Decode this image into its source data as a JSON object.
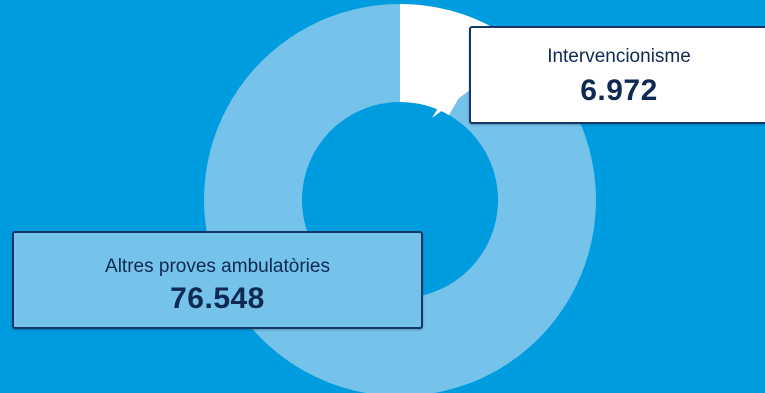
{
  "chart_data": {
    "type": "pie",
    "donut": true,
    "slices": [
      {
        "label": "Intervencionisme",
        "value": 6972,
        "display": "6.972",
        "color": "#ffffff"
      },
      {
        "label": "Altres proves ambulatòries",
        "value": 76548,
        "display": "76.548",
        "color": "#75c2ea"
      }
    ]
  },
  "colors": {
    "background": "#009ce0",
    "border": "#15386a",
    "text": "#0f2a52"
  }
}
